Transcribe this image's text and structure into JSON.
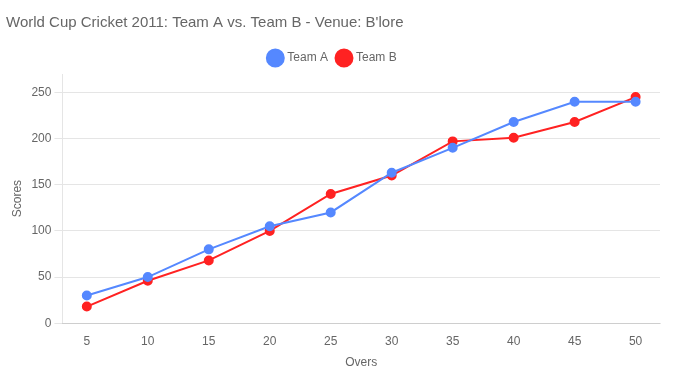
{
  "chart_data": {
    "type": "line",
    "title": "World Cup Cricket 2011: Team A vs. Team B - Venue: B'lore",
    "x_label": "Overs",
    "y_label": "Scores",
    "x": [
      5,
      10,
      15,
      20,
      25,
      30,
      35,
      40,
      45,
      50
    ],
    "series": [
      {
        "name": "Team A",
        "color": "#5588ff",
        "marker": "circle",
        "values": [
          30,
          50,
          80,
          105,
          120,
          163,
          190,
          218,
          240,
          240
        ]
      },
      {
        "name": "Team B",
        "color": "#ff2222",
        "marker": "circle",
        "values": [
          18,
          46,
          68,
          100,
          140,
          160,
          197,
          201,
          218,
          245
        ]
      }
    ],
    "xlim": [
      3,
      52
    ],
    "ylim": [
      0,
      270
    ],
    "xticks": [
      5,
      10,
      15,
      20,
      25,
      30,
      35,
      40,
      45,
      50
    ],
    "yticks": [
      0,
      50,
      100,
      150,
      200,
      250
    ],
    "grid": true,
    "legend": "top"
  }
}
